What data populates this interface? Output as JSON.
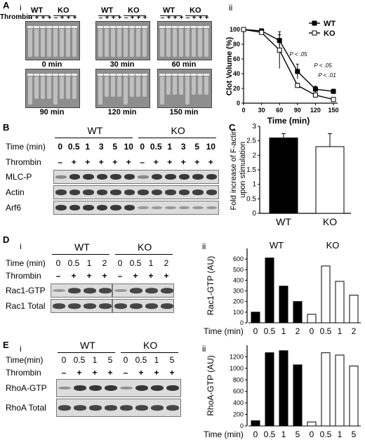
{
  "panels": {
    "A": "A",
    "A_i": "i",
    "A_ii": "ii",
    "B": "B",
    "C": "C",
    "D": "D",
    "D_i": "i",
    "D_ii": "ii",
    "E": "E",
    "E_i": "i",
    "E_ii": "ii"
  },
  "gels": {
    "wt": "WT",
    "ko": "KO",
    "thrombin": "Thrombin",
    "signs": [
      "–",
      "+",
      "+",
      "+",
      "–",
      "+",
      "+",
      "+"
    ],
    "times": [
      "0 min",
      "30 min",
      "60 min",
      "90 min",
      "120 min",
      "150 min"
    ]
  },
  "blotB": {
    "wt": "WT",
    "ko": "KO",
    "time_label": "Time (min)",
    "times": [
      "0",
      "0.5",
      "1",
      "3",
      "5",
      "10",
      "0",
      "0.5",
      "1",
      "3",
      "5",
      "10"
    ],
    "thrombin_label": "Thrombin",
    "signs": [
      "–",
      "+",
      "+",
      "+",
      "+",
      "+",
      "–",
      "+",
      "+",
      "+",
      "+",
      "+"
    ],
    "rows": [
      "MLC-P",
      "Actin",
      "Arf6"
    ]
  },
  "blotD": {
    "wt": "WT",
    "ko": "KO",
    "time_label": "Time (min)",
    "times": [
      "0",
      "0.5",
      "1",
      "2",
      "0",
      "0.5",
      "1",
      "2"
    ],
    "thrombin_label": "Thrombin",
    "signs": [
      "–",
      "+",
      "+",
      "+",
      "–",
      "+",
      "+",
      "+"
    ],
    "rows": [
      "Rac1-GTP",
      "Rac1 Total"
    ]
  },
  "blotE": {
    "wt": "WT",
    "ko": "KO",
    "time_label": "Time(min)",
    "times": [
      "0",
      "0.5",
      "1",
      "5",
      "0",
      "0.5",
      "1",
      "5"
    ],
    "thrombin_label": "Thrombin",
    "signs": [
      "–",
      "+",
      "+",
      "+",
      "–",
      "+",
      "+",
      "+"
    ],
    "rows": [
      "RhoA-GTP",
      "RhoA Total"
    ]
  },
  "chart_data": [
    {
      "id": "A_ii",
      "type": "line",
      "x": [
        0,
        30,
        60,
        90,
        120,
        150
      ],
      "xlabel": "Time (min)",
      "ylabel": "Clot Volume (%)",
      "xlim": [
        0,
        150
      ],
      "ylim": [
        0,
        100
      ],
      "xticks": [
        0,
        30,
        60,
        90,
        120,
        150
      ],
      "yticks": [
        0,
        20,
        40,
        60,
        80,
        100
      ],
      "series": [
        {
          "name": "WT",
          "values": [
            100,
            98,
            85,
            43,
            19,
            16
          ],
          "errors": [
            0,
            3,
            8,
            10,
            4,
            3
          ],
          "color": "#000000",
          "marker": "filled-square"
        },
        {
          "name": "KO",
          "values": [
            100,
            96,
            72,
            24,
            11,
            5
          ],
          "errors": [
            0,
            3,
            25,
            3,
            3,
            2
          ],
          "color": "#ffffff",
          "marker": "open-square"
        }
      ],
      "annotations": [
        "P < .05",
        "P < .05",
        "P < .01"
      ],
      "legend_position": "top-right"
    },
    {
      "id": "C",
      "type": "bar",
      "categories": [
        "WT",
        "KO"
      ],
      "values": [
        2.6,
        2.3
      ],
      "errors": [
        0.15,
        0.45
      ],
      "colors": [
        "#000000",
        "#ffffff"
      ],
      "ylabel": "Fold increase of F-actin upon stimulation",
      "ylim": [
        0,
        3
      ],
      "yticks": [
        0,
        0.5,
        1,
        1.5,
        2,
        2.5,
        3
      ]
    },
    {
      "id": "D_ii",
      "type": "bar",
      "groups": [
        {
          "name": "WT",
          "categories": [
            "0",
            "0.5",
            "1",
            "2"
          ],
          "values": [
            100,
            610,
            345,
            200
          ],
          "color": "#000000"
        },
        {
          "name": "KO",
          "categories": [
            "0",
            "0.5",
            "1",
            "2"
          ],
          "values": [
            80,
            535,
            390,
            260
          ],
          "color": "#ffffff"
        }
      ],
      "xlabel": "Time (min)",
      "ylabel": "Rac1-GTP (AU)",
      "ylim": [
        0,
        700
      ],
      "yticks": [
        0,
        100,
        200,
        300,
        400,
        500,
        600
      ]
    },
    {
      "id": "E_ii",
      "type": "bar",
      "groups": [
        {
          "name": "",
          "categories": [
            "0",
            "0.5",
            "1",
            "5"
          ],
          "values": [
            90,
            1270,
            1305,
            1060
          ],
          "color": "#000000"
        },
        {
          "name": "",
          "categories": [
            "0",
            "0.5",
            "1",
            "5"
          ],
          "values": [
            70,
            1270,
            1230,
            1040
          ],
          "color": "#ffffff"
        }
      ],
      "xlabel": "Time (min)",
      "ylabel": "RhoA-GTP (AU)",
      "ylim": [
        0,
        1400
      ],
      "yticks": [
        0,
        200,
        400,
        600,
        800,
        1000,
        1200
      ]
    }
  ]
}
